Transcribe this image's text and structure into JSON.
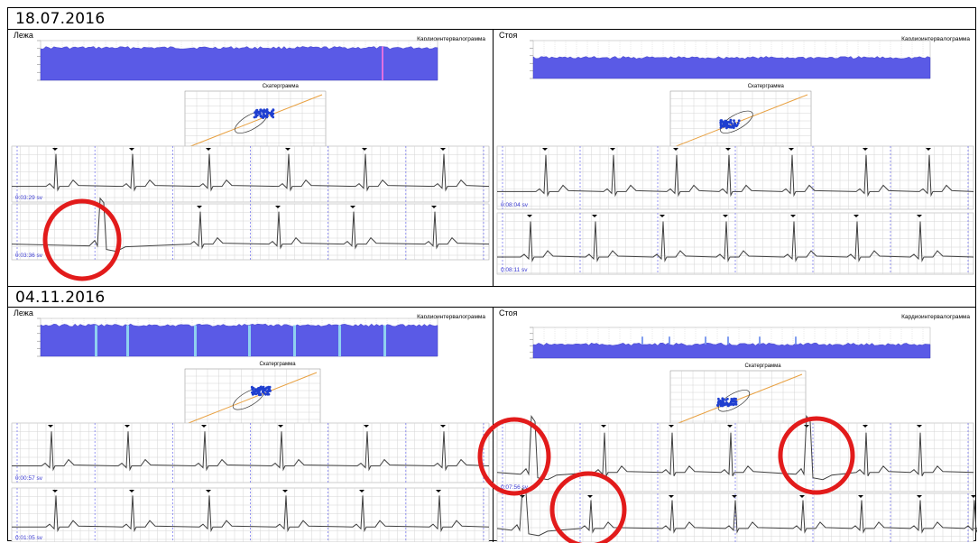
{
  "sections": [
    {
      "date": "18.07.2016",
      "panels": [
        {
          "posture": "Лежа",
          "rhythmogram_title": "Кардиоинтервалограмма",
          "scatter_title": "Скатерграмма",
          "strip1_time": "0:03:29 sv",
          "strip2_time": "0:03:36 sv"
        },
        {
          "posture": "Стоя",
          "rhythmogram_title": "Кардиоинтервалограмма",
          "scatter_title": "Скатерграмма",
          "strip1_time": "0:08:04 sv",
          "strip2_time": "0:08:11 sv"
        }
      ]
    },
    {
      "date": "04.11.2016",
      "panels": [
        {
          "posture": "Лежа",
          "rhythmogram_title": "Кардиоинтервалограмма",
          "scatter_title": "Скатерграмма",
          "strip1_time": "0:00:57 sv",
          "strip2_time": "0:01:05 sv"
        },
        {
          "posture": "Стоя",
          "rhythmogram_title": "Кардиоинтервалограмма",
          "scatter_title": "Скатерграмма",
          "strip1_time": "0:07:56 sv",
          "strip2_time": ""
        }
      ]
    }
  ],
  "colors": {
    "bars": "#5a5ae6",
    "bars_light": "#7f9cf0",
    "grid": "#9a9a9a",
    "ecg": "#404040",
    "highlight_circle": "#e21b1b",
    "trend": "#e8a040",
    "scatter_points": "#1f3fd0"
  }
}
